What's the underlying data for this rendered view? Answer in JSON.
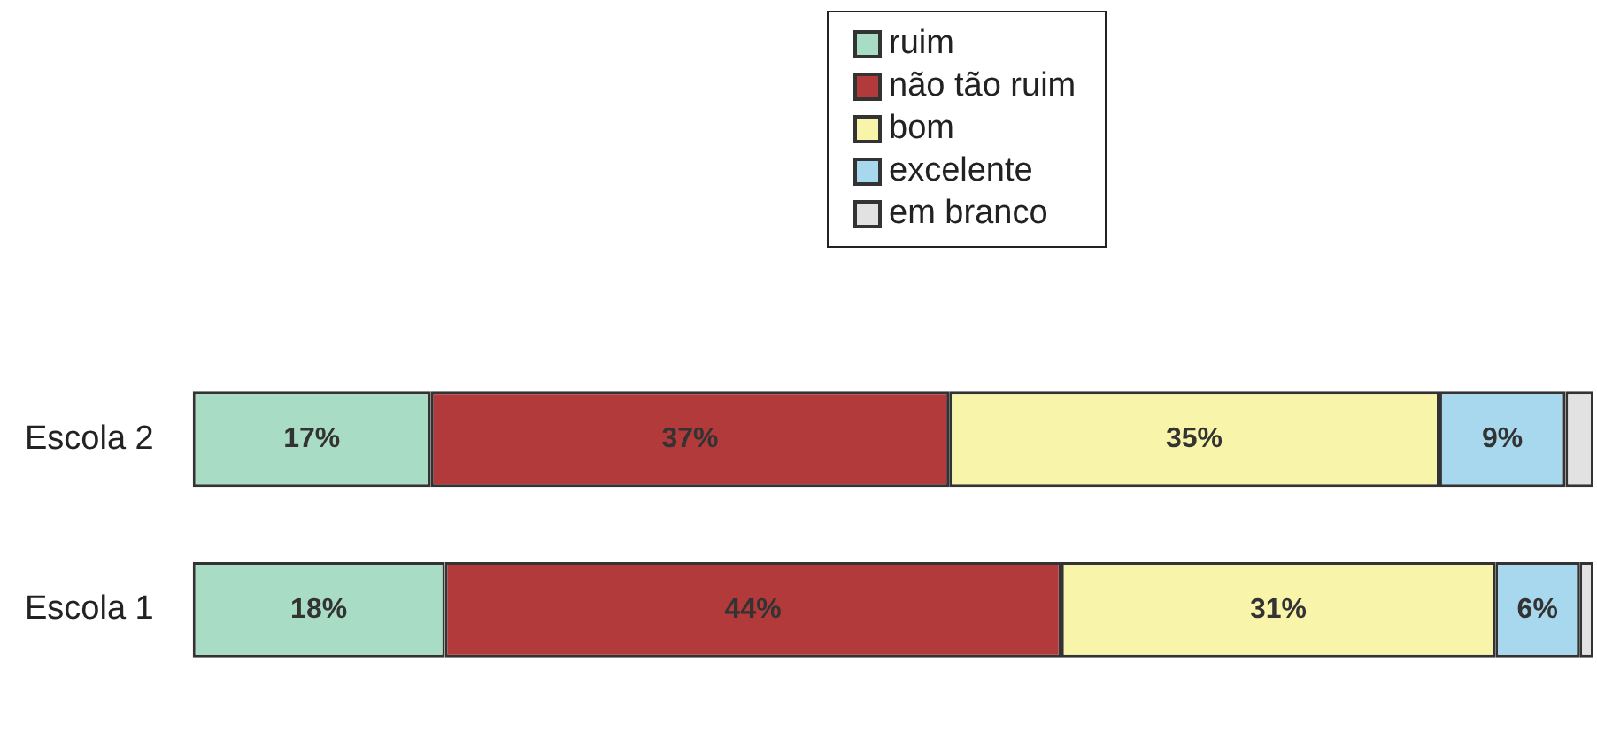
{
  "chart_data": {
    "type": "bar",
    "orientation": "horizontal",
    "stacked": true,
    "categories": [
      "Escola 2",
      "Escola 1"
    ],
    "xlim": [
      0,
      100
    ],
    "tick_labels": "y",
    "legend": "top",
    "series": [
      {
        "name": "ruim",
        "color": "#a8dcc4",
        "values": [
          17,
          18
        ],
        "value_labels": [
          "17%",
          "18%"
        ]
      },
      {
        "name": "não tão ruim",
        "color": "#b23a3a",
        "values": [
          37,
          44
        ],
        "value_labels": [
          "37%",
          "44%"
        ]
      },
      {
        "name": "bom",
        "color": "#f8f4aa",
        "values": [
          35,
          31
        ],
        "value_labels": [
          "35%",
          "31%"
        ]
      },
      {
        "name": "excelente",
        "color": "#a8d8ee",
        "values": [
          9,
          6
        ],
        "value_labels": [
          "9%",
          "6%"
        ]
      },
      {
        "name": "em branco",
        "color": "#e2e2e2",
        "values": [
          2,
          1
        ],
        "value_labels": [
          null,
          null
        ]
      }
    ]
  }
}
